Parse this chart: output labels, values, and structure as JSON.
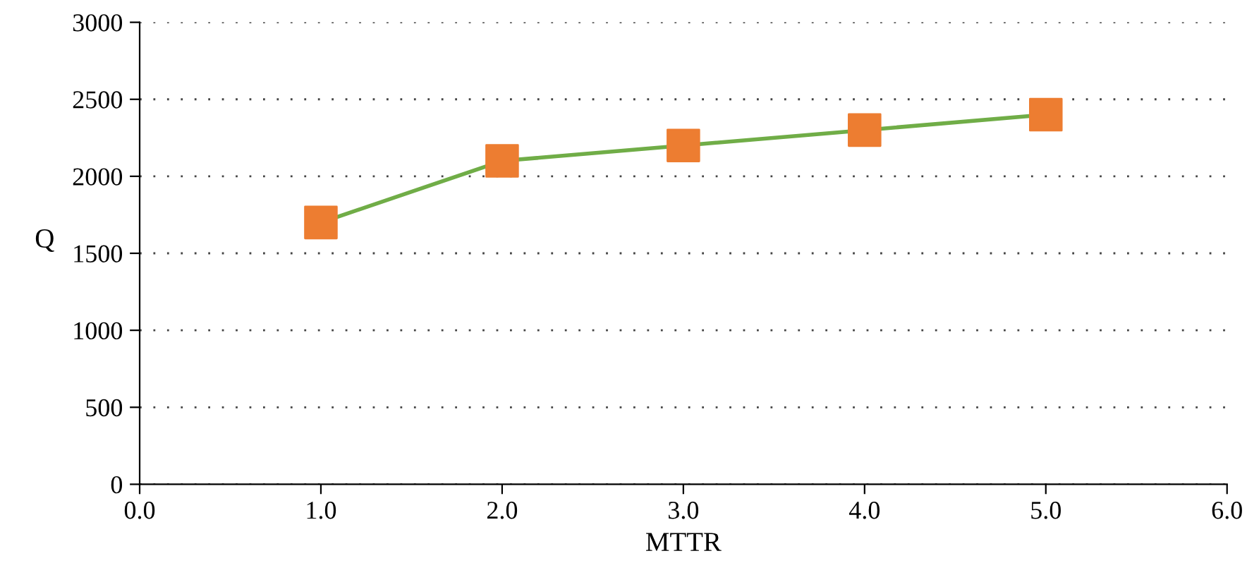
{
  "chart_data": {
    "type": "line",
    "xlabel": "MTTR",
    "ylabel": "Q",
    "x": [
      1.0,
      2.0,
      3.0,
      4.0,
      5.0
    ],
    "series": [
      {
        "color": "#70ad47",
        "colors": [
          "#ed7d31",
          "#ed7d31",
          "#ed7d31",
          "#ed7d31",
          "#ed7d31"
        ],
        "values": [
          1700,
          2100,
          2200,
          2300,
          2400
        ]
      }
    ],
    "xlim": [
      0,
      6
    ],
    "xticks": [
      {
        "value": 0,
        "label": "0.0"
      },
      {
        "value": 1,
        "label": "1.0"
      },
      {
        "value": 2,
        "label": "2.0"
      },
      {
        "value": 3,
        "label": "3.0"
      },
      {
        "value": 4,
        "label": "4.0"
      },
      {
        "value": 5,
        "label": "5.0"
      },
      {
        "value": 6,
        "label": "6.0"
      }
    ],
    "ylim": [
      0,
      3000
    ],
    "yticks": [
      0,
      500,
      1000,
      1500,
      2000,
      2500,
      3000
    ],
    "grid": "y",
    "marker": "square",
    "line_style": "solid",
    "legend": false
  }
}
